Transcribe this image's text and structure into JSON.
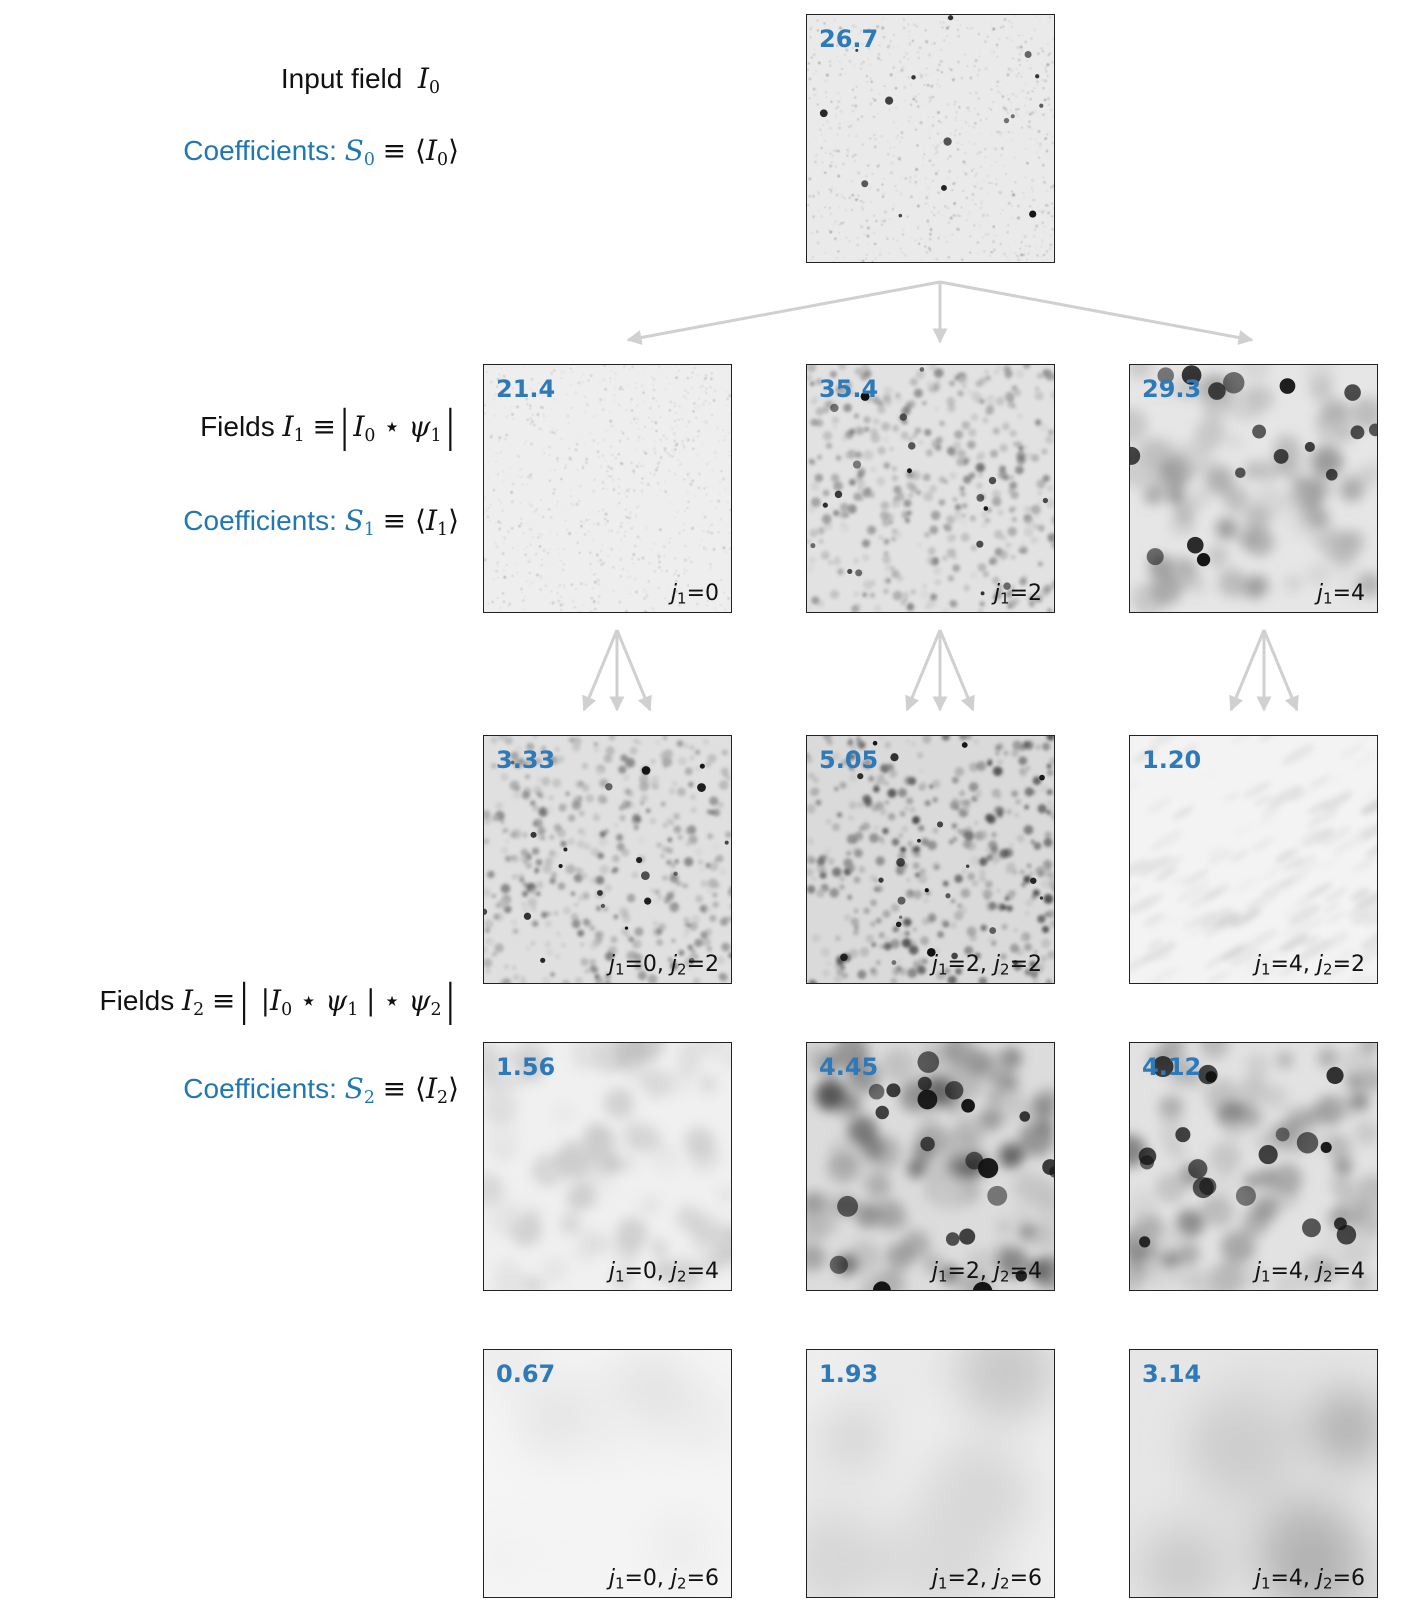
{
  "labels": {
    "input_field": "Input field",
    "coeff_prefix": "Coefficients:",
    "fields_prefix": "Fields"
  },
  "colors": {
    "coefficient_text": "#2e7ab8",
    "arrow": "#d0d0d0",
    "panel_border": "#222222"
  },
  "panels": [
    {
      "id": "input",
      "value": "26.7",
      "j1": "",
      "j2": "",
      "row": 0,
      "col": 1,
      "texture": "fine",
      "darkness": 0.35
    },
    {
      "id": "j1-0",
      "value": "21.4",
      "j1": "0",
      "j2": "",
      "row": 1,
      "col": 0,
      "texture": "fine",
      "darkness": 0.25
    },
    {
      "id": "j1-2",
      "value": "35.4",
      "j1": "2",
      "j2": "",
      "row": 1,
      "col": 1,
      "texture": "medium",
      "darkness": 0.55
    },
    {
      "id": "j1-4",
      "value": "29.3",
      "j1": "4",
      "j2": "",
      "row": 1,
      "col": 2,
      "texture": "coarse",
      "darkness": 0.45
    },
    {
      "id": "j1-0-j2-2",
      "value": "3.33",
      "j1": "0",
      "j2": "2",
      "row": 2,
      "col": 0,
      "texture": "medium",
      "darkness": 0.6
    },
    {
      "id": "j1-2-j2-2",
      "value": "5.05",
      "j1": "2",
      "j2": "2",
      "row": 2,
      "col": 1,
      "texture": "medium",
      "darkness": 0.75
    },
    {
      "id": "j1-4-j2-2",
      "value": "1.20",
      "j1": "4",
      "j2": "2",
      "row": 2,
      "col": 2,
      "texture": "streak",
      "darkness": 0.12
    },
    {
      "id": "j1-0-j2-4",
      "value": "1.56",
      "j1": "0",
      "j2": "4",
      "row": 3,
      "col": 0,
      "texture": "coarse",
      "darkness": 0.2
    },
    {
      "id": "j1-2-j2-4",
      "value": "4.45",
      "j1": "2",
      "j2": "4",
      "row": 3,
      "col": 1,
      "texture": "coarse",
      "darkness": 0.7
    },
    {
      "id": "j1-4-j2-4",
      "value": "4.12",
      "j1": "4",
      "j2": "4",
      "row": 3,
      "col": 2,
      "texture": "coarse",
      "darkness": 0.55
    },
    {
      "id": "j1-0-j2-6",
      "value": "0.67",
      "j1": "0",
      "j2": "6",
      "row": 4,
      "col": 0,
      "texture": "blob",
      "darkness": 0.08
    },
    {
      "id": "j1-2-j2-6",
      "value": "1.93",
      "j1": "2",
      "j2": "6",
      "row": 4,
      "col": 1,
      "texture": "blob",
      "darkness": 0.25
    },
    {
      "id": "j1-4-j2-6",
      "value": "3.14",
      "j1": "4",
      "j2": "6",
      "row": 4,
      "col": 2,
      "texture": "blob",
      "darkness": 0.45
    }
  ]
}
